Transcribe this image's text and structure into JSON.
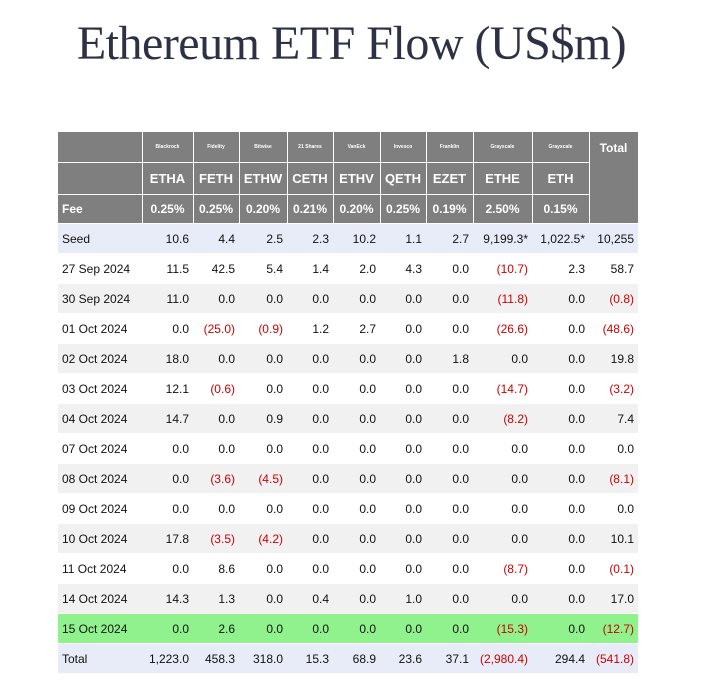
{
  "title": "Ethereum ETF Flow (US$m)",
  "highlight_color": "#90f28c",
  "negative_color": "#cc0000",
  "header": {
    "issuers": [
      "Blackrock",
      "Fidelity",
      "Bitwise",
      "21 Shares",
      "VanEck",
      "Invesco",
      "Franklin",
      "Grayscale",
      "Grayscale"
    ],
    "total_label": "Total",
    "tickers": [
      "ETHA",
      "FETH",
      "ETHW",
      "CETH",
      "ETHV",
      "QETH",
      "EZET",
      "ETHE",
      "ETH"
    ],
    "fee_label": "Fee",
    "fees": [
      "0.25%",
      "0.25%",
      "0.20%",
      "0.21%",
      "0.20%",
      "0.25%",
      "0.19%",
      "2.50%",
      "0.15%"
    ]
  },
  "rows": [
    {
      "label": "Seed",
      "values": [
        "10.6",
        "4.4",
        "2.5",
        "2.3",
        "10.2",
        "1.1",
        "2.7",
        "9,199.3*",
        "1,022.5*"
      ],
      "total": "10,255"
    },
    {
      "label": "27 Sep 2024",
      "values": [
        "11.5",
        "42.5",
        "5.4",
        "1.4",
        "2.0",
        "4.3",
        "0.0",
        "(10.7)",
        "2.3"
      ],
      "total": "58.7"
    },
    {
      "label": "30 Sep 2024",
      "values": [
        "11.0",
        "0.0",
        "0.0",
        "0.0",
        "0.0",
        "0.0",
        "0.0",
        "(11.8)",
        "0.0"
      ],
      "total": "(0.8)"
    },
    {
      "label": "01 Oct 2024",
      "values": [
        "0.0",
        "(25.0)",
        "(0.9)",
        "1.2",
        "2.7",
        "0.0",
        "0.0",
        "(26.6)",
        "0.0"
      ],
      "total": "(48.6)"
    },
    {
      "label": "02 Oct 2024",
      "values": [
        "18.0",
        "0.0",
        "0.0",
        "0.0",
        "0.0",
        "0.0",
        "1.8",
        "0.0",
        "0.0"
      ],
      "total": "19.8"
    },
    {
      "label": "03 Oct 2024",
      "values": [
        "12.1",
        "(0.6)",
        "0.0",
        "0.0",
        "0.0",
        "0.0",
        "0.0",
        "(14.7)",
        "0.0"
      ],
      "total": "(3.2)"
    },
    {
      "label": "04 Oct 2024",
      "values": [
        "14.7",
        "0.0",
        "0.9",
        "0.0",
        "0.0",
        "0.0",
        "0.0",
        "(8.2)",
        "0.0"
      ],
      "total": "7.4"
    },
    {
      "label": "07 Oct 2024",
      "values": [
        "0.0",
        "0.0",
        "0.0",
        "0.0",
        "0.0",
        "0.0",
        "0.0",
        "0.0",
        "0.0"
      ],
      "total": "0.0"
    },
    {
      "label": "08 Oct 2024",
      "values": [
        "0.0",
        "(3.6)",
        "(4.5)",
        "0.0",
        "0.0",
        "0.0",
        "0.0",
        "0.0",
        "0.0"
      ],
      "total": "(8.1)"
    },
    {
      "label": "09 Oct 2024",
      "values": [
        "0.0",
        "0.0",
        "0.0",
        "0.0",
        "0.0",
        "0.0",
        "0.0",
        "0.0",
        "0.0"
      ],
      "total": "0.0"
    },
    {
      "label": "10 Oct 2024",
      "values": [
        "17.8",
        "(3.5)",
        "(4.2)",
        "0.0",
        "0.0",
        "0.0",
        "0.0",
        "0.0",
        "0.0"
      ],
      "total": "10.1"
    },
    {
      "label": "11 Oct 2024",
      "values": [
        "0.0",
        "8.6",
        "0.0",
        "0.0",
        "0.0",
        "0.0",
        "0.0",
        "(8.7)",
        "0.0"
      ],
      "total": "(0.1)"
    },
    {
      "label": "14 Oct 2024",
      "values": [
        "14.3",
        "1.3",
        "0.0",
        "0.4",
        "0.0",
        "1.0",
        "0.0",
        "0.0",
        "0.0"
      ],
      "total": "17.0"
    },
    {
      "label": "15 Oct 2024",
      "values": [
        "0.0",
        "2.6",
        "0.0",
        "0.0",
        "0.0",
        "0.0",
        "0.0",
        "(15.3)",
        "0.0"
      ],
      "total": "(12.7)",
      "highlight": true
    },
    {
      "label": "Total",
      "values": [
        "1,223.0",
        "458.3",
        "318.0",
        "15.3",
        "68.9",
        "23.6",
        "37.1",
        "(2,980.4)",
        "294.4"
      ],
      "total": "(541.8)",
      "is_total": true
    }
  ]
}
